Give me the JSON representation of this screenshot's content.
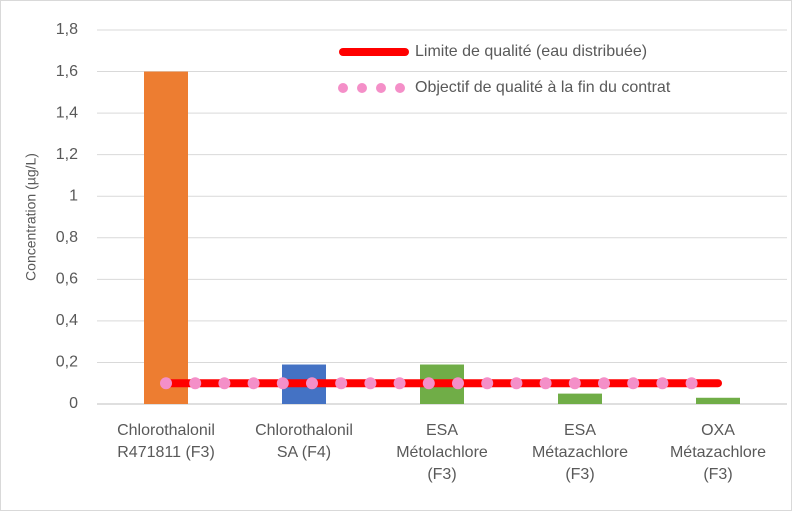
{
  "chart_data": {
    "type": "bar",
    "y_label": "Concentration (µg/L)",
    "categories": [
      "Chlorothalonil\nR471811 (F3)",
      "Chlorothalonil\nSA (F4)",
      "ESA\nMétolachlore\n(F3)",
      "ESA\nMétazachlore\n(F3)",
      "OXA\nMétazachlore\n(F3)"
    ],
    "values": [
      1.6,
      0.19,
      0.19,
      0.05,
      0.03
    ],
    "colors": [
      "#ed7d31",
      "#4472c4",
      "#70ad47",
      "#70ad47",
      "#70ad47"
    ],
    "reference_lines": [
      {
        "name": "Limite de qualité (eau distribuée)",
        "value": 0.1,
        "color": "#ff0000",
        "style": "solid"
      },
      {
        "name": "Objectif de qualité à la fin du contrat",
        "value": 0.1,
        "color": "#f48fc8",
        "style": "dotted"
      }
    ],
    "ylim": [
      0,
      1.8
    ],
    "yticks": [
      0,
      {
        "value": 0.2,
        "label": "0,2"
      },
      {
        "value": 0.4,
        "label": "0,4"
      },
      {
        "value": 0.6,
        "label": "0,6"
      },
      {
        "value": 0.8,
        "label": "0,8"
      },
      1,
      {
        "value": 1.2,
        "label": "1,2"
      },
      {
        "value": 1.4,
        "label": "1,4"
      },
      {
        "value": 1.6,
        "label": "1,6"
      },
      {
        "value": 1.8,
        "label": "1,8"
      }
    ],
    "grid": true,
    "legend": "top-right"
  }
}
